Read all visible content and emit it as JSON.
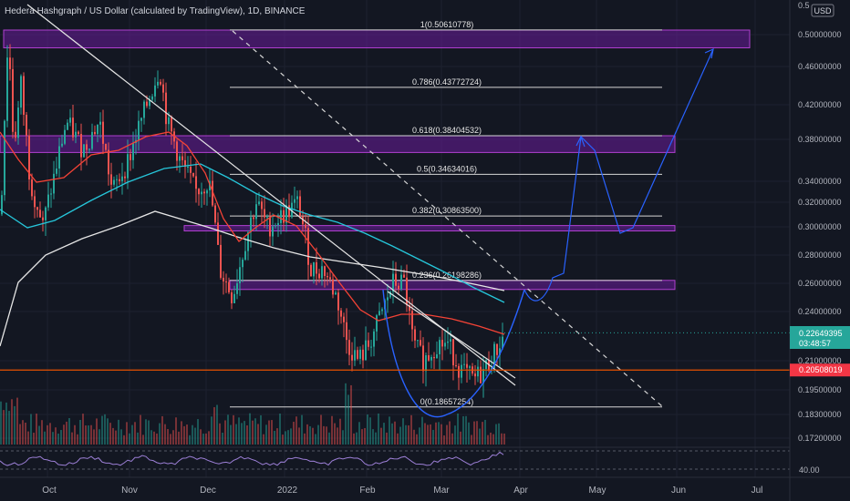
{
  "chart_data": {
    "type": "candlestick",
    "title": "Hedera Hashgraph / US Dollar (calculated by TradingView), 1D, BINANCE",
    "currency": "USD",
    "yaxis_ticks": [
      "0.50000000",
      "0.46000000",
      "0.42000000",
      "0.38000000",
      "0.34000000",
      "0.32000000",
      "0.30000000",
      "0.28000000",
      "0.26000000",
      "0.24000000",
      "0.21000000",
      "0.19500000",
      "0.18300000",
      "0.17200000"
    ],
    "yaxis_top_partial": "0.5",
    "xaxis_ticks": [
      "Oct",
      "Nov",
      "Dec",
      "2022",
      "Feb",
      "Mar",
      "Apr",
      "May",
      "Jun",
      "Jul"
    ],
    "price_badge": {
      "value": "0.22649395",
      "countdown": "03:48:57",
      "color": "#26a69a"
    },
    "support_badge": {
      "value": "0.20508019",
      "color": "#f23645"
    },
    "rsi_label": "40.00",
    "fib_levels": [
      {
        "ratio": "1",
        "price": "0.50610778",
        "label": "1(0.50610778)"
      },
      {
        "ratio": "0.786",
        "price": "0.43772724",
        "label": "0.786(0.43772724)"
      },
      {
        "ratio": "0.618",
        "price": "0.38404532",
        "label": "0.618(0.38404532)"
      },
      {
        "ratio": "0.5",
        "price": "0.34634016",
        "label": "0.5(0.34634016)"
      },
      {
        "ratio": "0.382",
        "price": "0.30863500",
        "label": "0.382(0.30863500)"
      },
      {
        "ratio": "0.236",
        "price": "0.26198286",
        "label": "0.236(0.26198286)"
      },
      {
        "ratio": "0",
        "price": "0.18657254",
        "label": "0(0.18657254)"
      }
    ],
    "zones": [
      {
        "name": "top-resistance-zone",
        "low": 0.483,
        "high": 0.506
      },
      {
        "name": "fib-618-zone",
        "low": 0.367,
        "high": 0.384
      },
      {
        "name": "fib-382-zone",
        "low": 0.297,
        "high": 0.301
      },
      {
        "name": "fib-236-zone",
        "low": 0.2555,
        "high": 0.262
      }
    ],
    "colors": {
      "background": "#131722",
      "up": "#26a69a",
      "down": "#ef5350",
      "zone_fill": "#6a1b9a",
      "zone_border": "#b040d0",
      "support": "#e65100",
      "projection": "#2962ff",
      "ma_red": "#f44336",
      "ma_teal": "#26c6da",
      "ma_white": "#e6e6e6",
      "rsi": "#9c7fd6"
    },
    "series": [
      {
        "name": "price-close",
        "x": [
          "Sep 28",
          "Oct 15",
          "Nov 1",
          "Nov 10",
          "Nov 20",
          "Dec 1",
          "Dec 10",
          "Dec 20",
          "Jan 1",
          "Jan 10",
          "Jan 20",
          "Jan 28",
          "Feb 5",
          "Feb 12",
          "Feb 18",
          "Feb 25",
          "Mar 5",
          "Mar 12",
          "Mar 20",
          "Mar 27"
        ],
        "values": [
          0.44,
          0.31,
          0.37,
          0.4,
          0.44,
          0.36,
          0.3,
          0.25,
          0.31,
          0.29,
          0.26,
          0.22,
          0.21,
          0.26,
          0.21,
          0.22,
          0.205,
          0.2,
          0.21,
          0.2265
        ]
      }
    ]
  }
}
